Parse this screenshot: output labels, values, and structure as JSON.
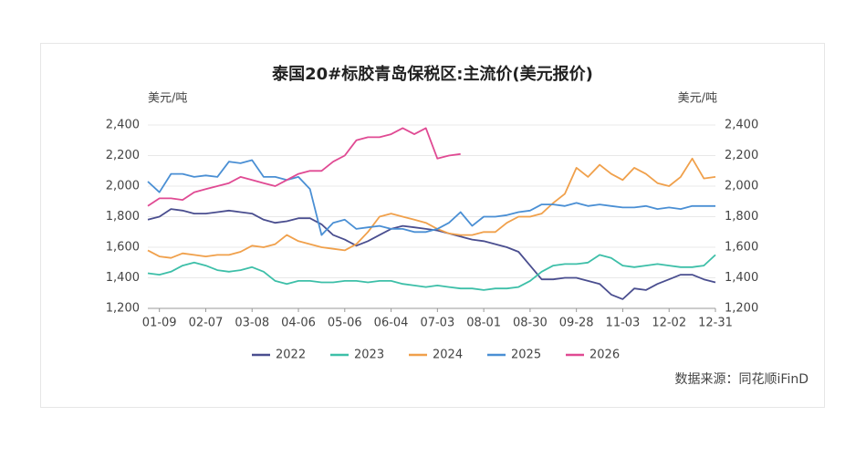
{
  "chart_data": {
    "type": "line",
    "title": "泰国20#标胶青岛保税区:主流价(美元报价)",
    "y_label": "美元/吨",
    "y2_label": "美元/吨",
    "source": "数据来源：同花顺iFinD",
    "categories": [
      null,
      "01-09",
      null,
      null,
      null,
      "02-07",
      null,
      null,
      null,
      "03-08",
      null,
      null,
      null,
      "04-06",
      null,
      null,
      null,
      "05-06",
      null,
      null,
      null,
      "06-04",
      null,
      null,
      null,
      "07-03",
      null,
      null,
      null,
      "08-01",
      null,
      null,
      null,
      "08-30",
      null,
      null,
      null,
      "09-28",
      null,
      null,
      null,
      "11-03",
      null,
      null,
      null,
      "12-02",
      null,
      null,
      null,
      "12-31"
    ],
    "ylim": [
      1200,
      2400
    ],
    "yticks": [
      {
        "value": 1200,
        "label": "1,200"
      },
      {
        "value": 1400,
        "label": "1,400"
      },
      {
        "value": 1600,
        "label": "1,600"
      },
      {
        "value": 1800,
        "label": "1,800"
      },
      {
        "value": 2000,
        "label": "2,000"
      },
      {
        "value": 2200,
        "label": "2,200"
      },
      {
        "value": 2400,
        "label": "2,400"
      }
    ],
    "y2lim": [
      1200,
      2400
    ],
    "y2ticks": [
      {
        "value": 1200,
        "label": "1,200"
      },
      {
        "value": 1400,
        "label": "1,400"
      },
      {
        "value": 1600,
        "label": "1,600"
      },
      {
        "value": 1800,
        "label": "1,800"
      },
      {
        "value": 2000,
        "label": "2,000"
      },
      {
        "value": 2200,
        "label": "2,200"
      },
      {
        "value": 2400,
        "label": "2,400"
      }
    ],
    "grid": true,
    "legend": "bottom",
    "series": [
      {
        "name": "2022",
        "color": "#4a4e8f",
        "values": [
          1780,
          1800,
          1850,
          1840,
          1820,
          1820,
          1830,
          1840,
          1830,
          1820,
          1780,
          1760,
          1770,
          1790,
          1790,
          1750,
          1680,
          1650,
          1610,
          1640,
          1680,
          1720,
          1740,
          1730,
          1720,
          1710,
          1690,
          1670,
          1650,
          1640,
          1620,
          1600,
          1570,
          1480,
          1390,
          1390,
          1400,
          1400,
          1380,
          1360,
          1290,
          1260,
          1330,
          1320,
          1360,
          1390,
          1420,
          1420,
          1390,
          1370
        ]
      },
      {
        "name": "2023",
        "color": "#3dbfa8",
        "values": [
          1430,
          1420,
          1440,
          1480,
          1500,
          1480,
          1450,
          1440,
          1450,
          1470,
          1440,
          1380,
          1360,
          1380,
          1380,
          1370,
          1370,
          1380,
          1380,
          1370,
          1380,
          1380,
          1360,
          1350,
          1340,
          1350,
          1340,
          1330,
          1330,
          1320,
          1330,
          1330,
          1340,
          1380,
          1440,
          1480,
          1490,
          1490,
          1500,
          1550,
          1530,
          1480,
          1470,
          1480,
          1490,
          1480,
          1470,
          1470,
          1480,
          1550
        ]
      },
      {
        "name": "2024",
        "color": "#f0a04b",
        "values": [
          1580,
          1540,
          1530,
          1560,
          1550,
          1540,
          1550,
          1550,
          1570,
          1610,
          1600,
          1620,
          1680,
          1640,
          1620,
          1600,
          1590,
          1580,
          1620,
          1700,
          1800,
          1820,
          1800,
          1780,
          1760,
          1720,
          1690,
          1680,
          1680,
          1700,
          1700,
          1760,
          1800,
          1800,
          1820,
          1890,
          1950,
          2120,
          2060,
          2140,
          2080,
          2040,
          2120,
          2080,
          2020,
          2000,
          2060,
          2180,
          2050,
          2060
        ]
      },
      {
        "name": "2025",
        "color": "#4a8fd4",
        "values": [
          2030,
          1960,
          2080,
          2080,
          2060,
          2070,
          2060,
          2160,
          2150,
          2170,
          2060,
          2060,
          2040,
          2060,
          1980,
          1680,
          1760,
          1780,
          1720,
          1730,
          1740,
          1720,
          1720,
          1700,
          1700,
          1720,
          1760,
          1830,
          1740,
          1800,
          1800,
          1810,
          1830,
          1840,
          1880,
          1880,
          1870,
          1890,
          1870,
          1880,
          1870,
          1860,
          1860,
          1870,
          1850,
          1860,
          1850,
          1870,
          1870,
          1870
        ]
      },
      {
        "name": "2026",
        "color": "#e04a93",
        "values": [
          1870,
          1920,
          1920,
          1910,
          1960,
          1980,
          2000,
          2020,
          2060,
          2040,
          2020,
          2000,
          2040,
          2080,
          2100,
          2100,
          2160,
          2200,
          2300,
          2320,
          2320,
          2340,
          2380,
          2340,
          2380,
          2180,
          2200,
          2210,
          null,
          null,
          null,
          null,
          null,
          null,
          null,
          null,
          null,
          null,
          null,
          null,
          null,
          null,
          null,
          null,
          null,
          null,
          null,
          null,
          null,
          null
        ]
      }
    ]
  }
}
